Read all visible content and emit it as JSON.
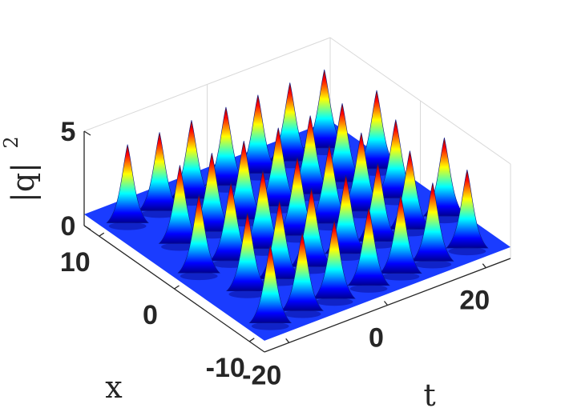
{
  "chart_data": {
    "type": "surface3d",
    "title": "",
    "xlabel": "t",
    "ylabel": "x",
    "zlabel": "|q|²",
    "xlabel_text": "t",
    "ylabel_text": "x",
    "zlabel_text": "|q|",
    "zlabel_exponent": "2",
    "xlim": [
      -25,
      25
    ],
    "ylim": [
      -12,
      12
    ],
    "zlim": [
      0,
      5
    ],
    "x_ticks": [
      "-20",
      "0",
      "20"
    ],
    "y_ticks": [
      "-10",
      "0",
      "10"
    ],
    "z_ticks": [
      "0",
      "5"
    ],
    "x_tick_values": [
      -20,
      0,
      20
    ],
    "y_tick_values": [
      -10,
      0,
      10
    ],
    "z_tick_values": [
      0,
      5
    ],
    "colormap": "jet",
    "grid": true,
    "peak_height": 4.5,
    "peak_rows_x": [
      -9.5,
      -4.5,
      0,
      4.5,
      9.5
    ],
    "peak_cols_t": [
      -20,
      -13.5,
      -7,
      0,
      6.5,
      13,
      20
    ],
    "baseline_level": 0.6
  }
}
